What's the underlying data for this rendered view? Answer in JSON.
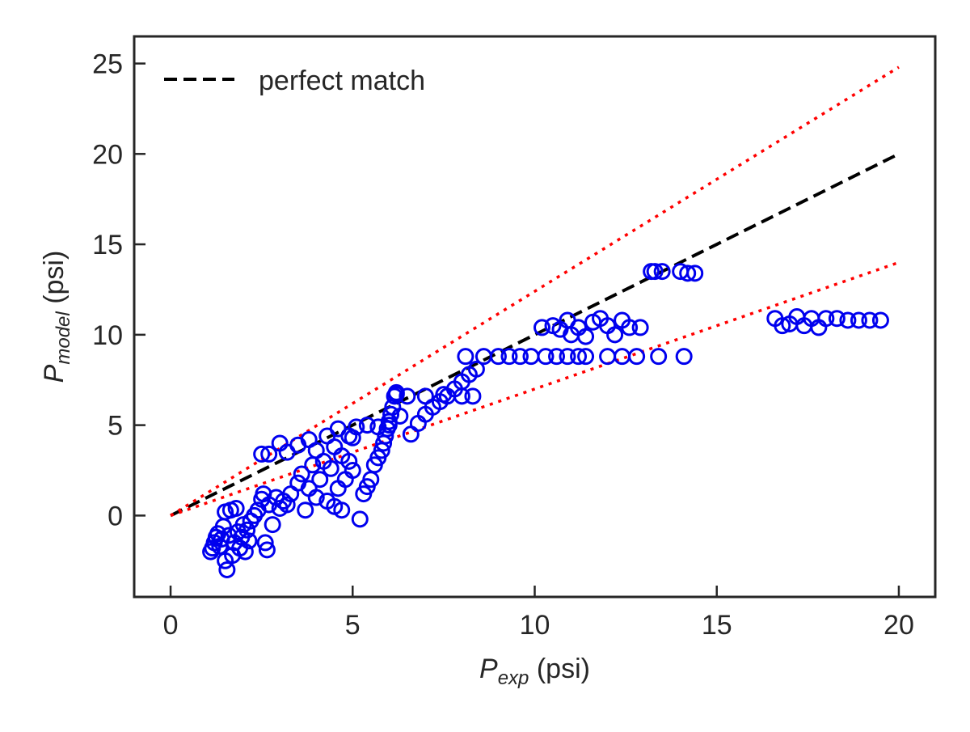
{
  "chart_data": {
    "type": "scatter",
    "title": "",
    "xlabel": {
      "main": "P",
      "sub": "exp",
      "unit": " (psi)"
    },
    "ylabel": {
      "main": "P",
      "sub": "model",
      "unit": " (psi)"
    },
    "xlim": [
      -1,
      21
    ],
    "ylim": [
      -4.5,
      26.5
    ],
    "xticks": [
      0,
      5,
      10,
      15,
      20
    ],
    "yticks": [
      0,
      5,
      10,
      15,
      20,
      25
    ],
    "grid": false,
    "legend": {
      "placement": "top-left",
      "entries": [
        {
          "label": "perfect match",
          "style": "dashed",
          "color": "#000000"
        }
      ]
    },
    "colors": {
      "points": "#0000ee",
      "match_line": "#000000",
      "bounds": "#ff0000",
      "axes": "#262626"
    },
    "lines": [
      {
        "role": "perfect-match",
        "style": "dashed",
        "color": "#000000",
        "x": [
          0,
          20
        ],
        "y": [
          0,
          20
        ]
      },
      {
        "role": "upper-bound",
        "style": "dotted",
        "color": "#ff0000",
        "x": [
          0,
          20
        ],
        "y": [
          0,
          24.8
        ]
      },
      {
        "role": "lower-bound",
        "style": "dotted",
        "color": "#ff0000",
        "x": [
          0,
          20
        ],
        "y": [
          0,
          14.0
        ]
      }
    ],
    "series": [
      {
        "marker": "open-circle",
        "color": "#0000ee",
        "points": [
          [
            1.1,
            -2.0
          ],
          [
            1.15,
            -1.8
          ],
          [
            1.2,
            -1.5
          ],
          [
            1.25,
            -1.2
          ],
          [
            1.3,
            -1.0
          ],
          [
            1.35,
            -1.7
          ],
          [
            1.4,
            -1.3
          ],
          [
            1.45,
            -0.6
          ],
          [
            1.5,
            0.2
          ],
          [
            1.5,
            -2.5
          ],
          [
            1.55,
            -3.0
          ],
          [
            1.6,
            -1.1
          ],
          [
            1.65,
            0.3
          ],
          [
            1.7,
            -2.2
          ],
          [
            1.75,
            -1.5
          ],
          [
            1.8,
            0.4
          ],
          [
            1.85,
            -0.9
          ],
          [
            1.9,
            -1.8
          ],
          [
            1.95,
            -1.2
          ],
          [
            2.0,
            -0.5
          ],
          [
            2.05,
            -2.0
          ],
          [
            2.1,
            -0.8
          ],
          [
            2.15,
            -1.4
          ],
          [
            2.2,
            -0.3
          ],
          [
            2.3,
            0.0
          ],
          [
            2.4,
            0.3
          ],
          [
            2.5,
            0.9
          ],
          [
            2.55,
            1.2
          ],
          [
            2.6,
            -1.5
          ],
          [
            2.65,
            -1.9
          ],
          [
            2.7,
            0.6
          ],
          [
            2.8,
            -0.5
          ],
          [
            2.9,
            1.0
          ],
          [
            3.0,
            0.4
          ],
          [
            3.1,
            0.8
          ],
          [
            3.2,
            0.6
          ],
          [
            3.3,
            1.2
          ],
          [
            3.5,
            1.8
          ],
          [
            3.6,
            2.3
          ],
          [
            3.7,
            0.3
          ],
          [
            3.8,
            1.5
          ],
          [
            3.9,
            2.8
          ],
          [
            4.0,
            1.0
          ],
          [
            4.1,
            2.0
          ],
          [
            4.2,
            3.0
          ],
          [
            4.3,
            0.8
          ],
          [
            4.4,
            2.6
          ],
          [
            4.5,
            0.5
          ],
          [
            4.5,
            3.8
          ],
          [
            4.6,
            1.5
          ],
          [
            4.7,
            0.3
          ],
          [
            4.7,
            3.3
          ],
          [
            4.8,
            2.0
          ],
          [
            4.9,
            3.0
          ],
          [
            5.0,
            2.5
          ],
          [
            5.0,
            4.3
          ],
          [
            5.2,
            -0.2
          ],
          [
            5.3,
            1.2
          ],
          [
            5.4,
            1.6
          ],
          [
            5.5,
            2.0
          ],
          [
            5.6,
            2.8
          ],
          [
            5.7,
            3.2
          ],
          [
            5.8,
            3.6
          ],
          [
            5.85,
            4.0
          ],
          [
            5.9,
            4.4
          ],
          [
            5.95,
            4.8
          ],
          [
            6.0,
            5.2
          ],
          [
            6.05,
            5.6
          ],
          [
            6.1,
            6.0
          ],
          [
            6.15,
            6.6
          ],
          [
            6.2,
            6.8
          ],
          [
            6.3,
            5.5
          ],
          [
            6.5,
            6.6
          ],
          [
            6.6,
            4.5
          ],
          [
            6.8,
            5.1
          ],
          [
            7.0,
            5.6
          ],
          [
            7.2,
            6.0
          ],
          [
            7.4,
            6.3
          ],
          [
            7.6,
            6.6
          ],
          [
            7.8,
            7.0
          ],
          [
            8.0,
            7.4
          ],
          [
            8.2,
            7.8
          ],
          [
            8.4,
            8.1
          ],
          [
            2.5,
            3.4
          ],
          [
            2.7,
            3.4
          ],
          [
            3.0,
            4.0
          ],
          [
            3.2,
            3.5
          ],
          [
            3.5,
            3.9
          ],
          [
            3.8,
            4.2
          ],
          [
            4.0,
            3.6
          ],
          [
            4.3,
            4.4
          ],
          [
            4.6,
            4.8
          ],
          [
            4.9,
            4.4
          ],
          [
            5.1,
            4.9
          ],
          [
            5.4,
            5.0
          ],
          [
            5.7,
            4.9
          ],
          [
            6.0,
            5.0
          ],
          [
            6.2,
            6.7
          ],
          [
            7.0,
            6.6
          ],
          [
            7.5,
            6.7
          ],
          [
            8.0,
            6.6
          ],
          [
            8.3,
            6.6
          ],
          [
            8.1,
            8.8
          ],
          [
            8.6,
            8.8
          ],
          [
            9.0,
            8.8
          ],
          [
            9.3,
            8.8
          ],
          [
            9.6,
            8.8
          ],
          [
            9.9,
            8.8
          ],
          [
            10.3,
            8.8
          ],
          [
            10.6,
            8.8
          ],
          [
            10.9,
            8.8
          ],
          [
            11.2,
            8.8
          ],
          [
            11.4,
            8.8
          ],
          [
            12.0,
            8.8
          ],
          [
            12.4,
            8.8
          ],
          [
            12.8,
            8.8
          ],
          [
            13.4,
            8.8
          ],
          [
            14.1,
            8.8
          ],
          [
            10.2,
            10.4
          ],
          [
            10.5,
            10.5
          ],
          [
            10.7,
            10.3
          ],
          [
            10.9,
            10.8
          ],
          [
            11.0,
            10.0
          ],
          [
            11.2,
            10.4
          ],
          [
            11.4,
            9.9
          ],
          [
            11.6,
            10.7
          ],
          [
            11.8,
            10.9
          ],
          [
            12.0,
            10.5
          ],
          [
            12.2,
            10.0
          ],
          [
            12.4,
            10.8
          ],
          [
            12.6,
            10.4
          ],
          [
            12.9,
            10.4
          ],
          [
            13.2,
            13.5
          ],
          [
            13.3,
            13.5
          ],
          [
            13.5,
            13.5
          ],
          [
            14.0,
            13.5
          ],
          [
            14.2,
            13.4
          ],
          [
            14.4,
            13.4
          ],
          [
            16.6,
            10.9
          ],
          [
            16.8,
            10.5
          ],
          [
            17.0,
            10.6
          ],
          [
            17.2,
            11.0
          ],
          [
            17.4,
            10.5
          ],
          [
            17.6,
            10.9
          ],
          [
            17.8,
            10.4
          ],
          [
            18.0,
            10.9
          ],
          [
            18.3,
            10.9
          ],
          [
            18.6,
            10.8
          ],
          [
            18.9,
            10.8
          ],
          [
            19.2,
            10.8
          ],
          [
            19.5,
            10.8
          ]
        ]
      }
    ]
  }
}
